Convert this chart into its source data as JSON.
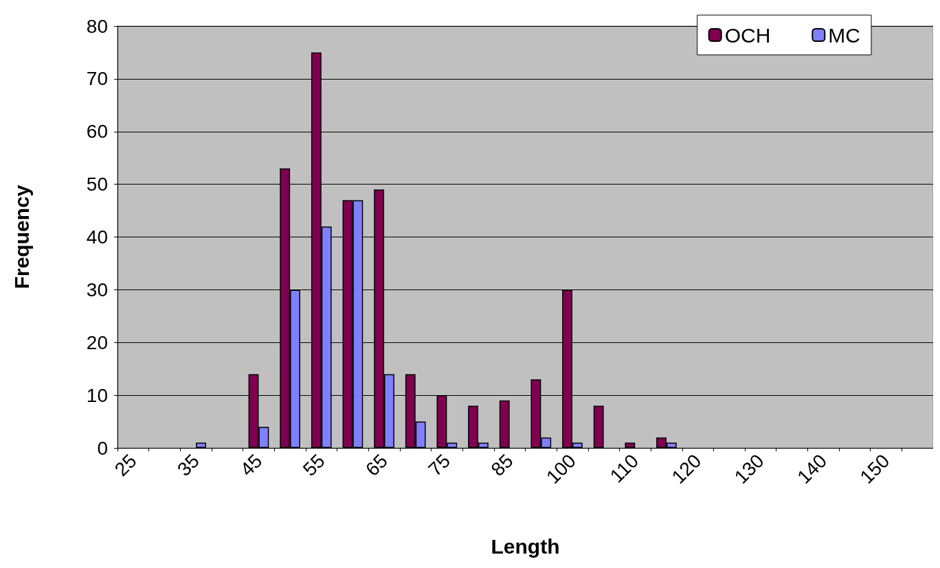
{
  "chart_data": {
    "type": "bar",
    "xlabel": "Length",
    "ylabel": "Frequency",
    "categories": [
      "25",
      null,
      "35",
      null,
      "45",
      null,
      "55",
      null,
      "65",
      null,
      "75",
      null,
      "85",
      null,
      "100",
      null,
      "110",
      null,
      "120",
      null,
      "130",
      null,
      "140",
      null,
      "150",
      null
    ],
    "series": [
      {
        "name": "OCH",
        "color": "#800050",
        "values": [
          0,
          0,
          0,
          0,
          14,
          53,
          75,
          47,
          49,
          14,
          10,
          8,
          9,
          13,
          30,
          8,
          1,
          2,
          0,
          0,
          0,
          0,
          0,
          0,
          0,
          0
        ]
      },
      {
        "name": "MC",
        "color": "#8080ff",
        "values": [
          0,
          0,
          1,
          0,
          4,
          30,
          42,
          47,
          14,
          5,
          1,
          1,
          0,
          2,
          1,
          0,
          0,
          1,
          0,
          0,
          0,
          0,
          0,
          0,
          0,
          0
        ]
      }
    ],
    "ylim": [
      0,
      80
    ],
    "yticks": [
      0,
      10,
      20,
      30,
      40,
      50,
      60,
      70,
      80
    ],
    "grid": "y",
    "legend": "top right"
  }
}
